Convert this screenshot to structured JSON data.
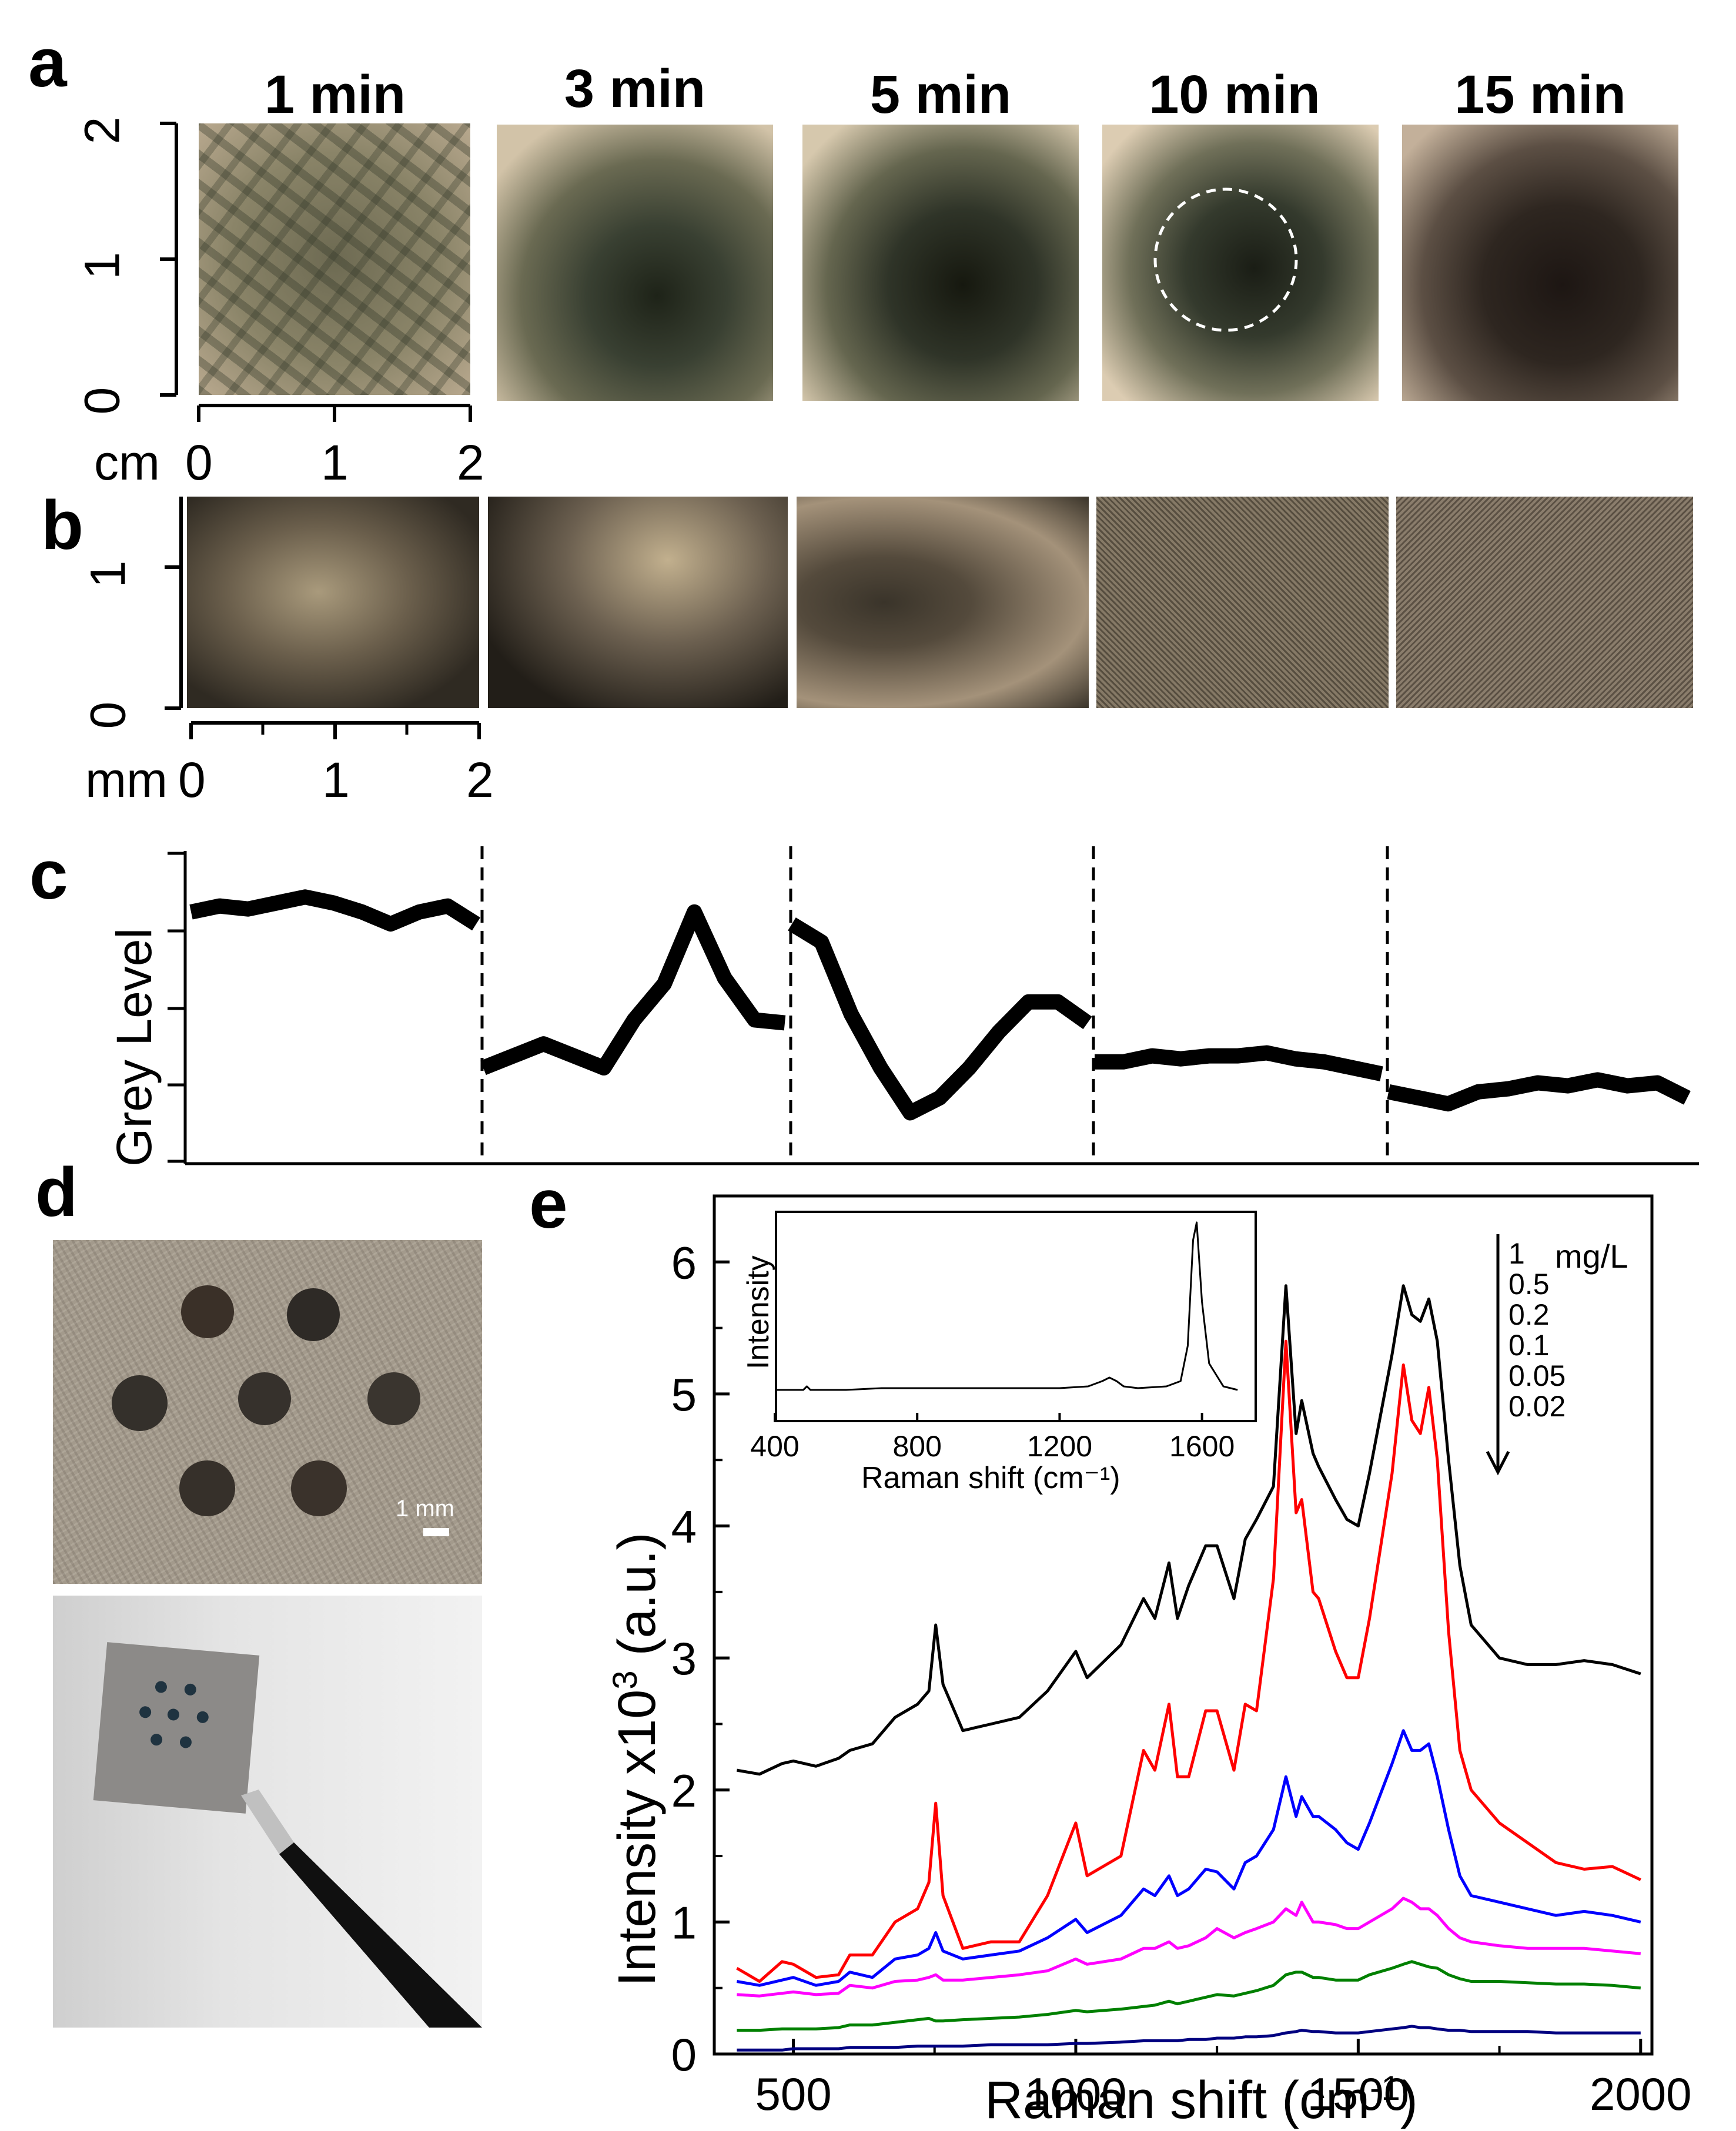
{
  "panel_a": {
    "letter": "a",
    "times": [
      "1 min",
      "3 min",
      "5 min",
      "10 min",
      "15 min"
    ],
    "y_ticks": [
      "0",
      "1",
      "2"
    ],
    "x_ticks": [
      "0",
      "1",
      "2"
    ],
    "unit": "cm"
  },
  "panel_b": {
    "letter": "b",
    "y_ticks": [
      "0",
      "1"
    ],
    "x_ticks": [
      "0",
      "1",
      "2"
    ],
    "unit": "mm"
  },
  "panel_c": {
    "letter": "c",
    "ylabel": "Grey Level"
  },
  "panel_d": {
    "letter": "d",
    "scale_bar": "1 mm"
  },
  "panel_e": {
    "letter": "e",
    "inset_ylabel": "Intensity",
    "inset_xlabel": "Raman shift (cm⁻¹)",
    "ylabel_main": "Intensity x10",
    "ylabel_sup": "3",
    "ylabel_unit": " (a.u.)",
    "xlabel_main": "Raman shift (cm",
    "xlabel_sup": "-1",
    "xlabel_end": ")",
    "legend_unit": "mg/L"
  },
  "chart_data": [
    {
      "type": "line",
      "id": "grey-level-profiles",
      "ylabel": "Grey Level",
      "segments": [
        "1 min",
        "3 min",
        "5 min",
        "10 min",
        "15 min"
      ],
      "x": [
        0,
        0.1,
        0.2,
        0.3,
        0.4,
        0.5,
        0.6,
        0.7,
        0.8,
        0.9,
        1.0
      ],
      "series": [
        {
          "values": [
            0.82,
            0.84,
            0.83,
            0.85,
            0.87,
            0.85,
            0.82,
            0.78,
            0.82,
            0.84,
            0.78
          ]
        },
        {
          "values": [
            0.3,
            0.34,
            0.38,
            0.34,
            0.3,
            0.46,
            0.58,
            0.82,
            0.6,
            0.46,
            0.45
          ]
        },
        {
          "values": [
            0.78,
            0.72,
            0.48,
            0.3,
            0.15,
            0.2,
            0.3,
            0.42,
            0.52,
            0.52,
            0.45
          ]
        },
        {
          "values": [
            0.32,
            0.32,
            0.34,
            0.33,
            0.34,
            0.34,
            0.35,
            0.33,
            0.32,
            0.3,
            0.28
          ]
        },
        {
          "values": [
            0.22,
            0.2,
            0.18,
            0.22,
            0.23,
            0.25,
            0.24,
            0.26,
            0.24,
            0.25,
            0.2
          ]
        }
      ]
    },
    {
      "type": "line",
      "id": "sers-spectra",
      "xlabel": "Raman shift (cm-1)",
      "ylabel": "Intensity x10^3 (a.u.)",
      "xlim": [
        360,
        2020
      ],
      "ylim": [
        0,
        6.5
      ],
      "x_ticks": [
        500,
        1000,
        1500,
        2000
      ],
      "y_ticks": [
        0,
        1,
        2,
        3,
        4,
        5,
        6
      ],
      "legend_title": "mg/L",
      "legend": [
        "1",
        "0.5",
        "0.2",
        "0.1",
        "0.05",
        "0.02"
      ],
      "x": [
        400,
        440,
        480,
        500,
        540,
        580,
        600,
        640,
        680,
        720,
        740,
        752,
        765,
        800,
        850,
        900,
        950,
        1000,
        1020,
        1080,
        1120,
        1140,
        1165,
        1180,
        1200,
        1230,
        1250,
        1280,
        1300,
        1320,
        1350,
        1372,
        1390,
        1400,
        1420,
        1430,
        1460,
        1480,
        1500,
        1520,
        1560,
        1580,
        1595,
        1610,
        1625,
        1640,
        1660,
        1680,
        1700,
        1750,
        1800,
        1850,
        1900,
        1950,
        2000
      ],
      "series": [
        {
          "name": "1",
          "color": "#000000",
          "values": [
            2.15,
            2.12,
            2.2,
            2.22,
            2.18,
            2.24,
            2.3,
            2.35,
            2.55,
            2.65,
            2.75,
            3.25,
            2.8,
            2.45,
            2.5,
            2.55,
            2.75,
            3.05,
            2.85,
            3.1,
            3.45,
            3.3,
            3.72,
            3.3,
            3.55,
            3.85,
            3.85,
            3.45,
            3.9,
            4.05,
            4.3,
            5.82,
            4.7,
            4.95,
            4.55,
            4.45,
            4.2,
            4.05,
            4.0,
            4.4,
            5.3,
            5.82,
            5.6,
            5.55,
            5.72,
            5.4,
            4.5,
            3.7,
            3.25,
            3.0,
            2.95,
            2.95,
            2.98,
            2.95,
            2.88
          ]
        },
        {
          "name": "0.5",
          "color": "#ff0000",
          "values": [
            0.65,
            0.55,
            0.7,
            0.68,
            0.58,
            0.6,
            0.75,
            0.75,
            1.0,
            1.1,
            1.3,
            1.9,
            1.2,
            0.8,
            0.85,
            0.85,
            1.2,
            1.75,
            1.35,
            1.5,
            2.3,
            2.15,
            2.65,
            2.1,
            2.1,
            2.6,
            2.6,
            2.15,
            2.65,
            2.6,
            3.6,
            5.4,
            4.1,
            4.2,
            3.5,
            3.45,
            3.05,
            2.85,
            2.85,
            3.3,
            4.4,
            5.22,
            4.8,
            4.7,
            5.05,
            4.5,
            3.2,
            2.3,
            2.0,
            1.75,
            1.6,
            1.45,
            1.4,
            1.42,
            1.32
          ]
        },
        {
          "name": "0.2",
          "color": "#0000ff",
          "values": [
            0.55,
            0.52,
            0.56,
            0.58,
            0.52,
            0.55,
            0.62,
            0.58,
            0.72,
            0.75,
            0.8,
            0.92,
            0.78,
            0.72,
            0.75,
            0.78,
            0.88,
            1.02,
            0.92,
            1.05,
            1.25,
            1.2,
            1.35,
            1.2,
            1.25,
            1.4,
            1.38,
            1.25,
            1.45,
            1.5,
            1.7,
            2.1,
            1.8,
            1.95,
            1.8,
            1.8,
            1.7,
            1.6,
            1.55,
            1.75,
            2.2,
            2.45,
            2.3,
            2.3,
            2.35,
            2.1,
            1.7,
            1.35,
            1.2,
            1.15,
            1.1,
            1.05,
            1.08,
            1.05,
            1.0
          ]
        },
        {
          "name": "0.1",
          "color": "#ff00ff",
          "values": [
            0.45,
            0.44,
            0.46,
            0.47,
            0.45,
            0.46,
            0.52,
            0.5,
            0.55,
            0.56,
            0.58,
            0.6,
            0.56,
            0.56,
            0.58,
            0.6,
            0.63,
            0.72,
            0.68,
            0.72,
            0.8,
            0.8,
            0.85,
            0.8,
            0.82,
            0.88,
            0.95,
            0.88,
            0.92,
            0.95,
            1.0,
            1.1,
            1.05,
            1.15,
            1.0,
            1.0,
            0.98,
            0.95,
            0.95,
            1.0,
            1.1,
            1.18,
            1.15,
            1.1,
            1.1,
            1.05,
            0.95,
            0.88,
            0.85,
            0.82,
            0.8,
            0.8,
            0.8,
            0.78,
            0.76
          ]
        },
        {
          "name": "0.05",
          "color": "#008000",
          "values": [
            0.18,
            0.18,
            0.19,
            0.19,
            0.19,
            0.2,
            0.22,
            0.22,
            0.24,
            0.26,
            0.27,
            0.25,
            0.25,
            0.26,
            0.27,
            0.28,
            0.3,
            0.33,
            0.32,
            0.34,
            0.36,
            0.37,
            0.4,
            0.38,
            0.4,
            0.43,
            0.45,
            0.44,
            0.46,
            0.48,
            0.52,
            0.6,
            0.62,
            0.62,
            0.58,
            0.58,
            0.56,
            0.56,
            0.56,
            0.6,
            0.65,
            0.68,
            0.7,
            0.68,
            0.66,
            0.65,
            0.6,
            0.57,
            0.55,
            0.55,
            0.54,
            0.53,
            0.53,
            0.52,
            0.5
          ]
        },
        {
          "name": "0.02",
          "color": "#000080",
          "values": [
            0.03,
            0.03,
            0.03,
            0.04,
            0.04,
            0.04,
            0.05,
            0.05,
            0.05,
            0.06,
            0.06,
            0.06,
            0.06,
            0.06,
            0.07,
            0.07,
            0.07,
            0.08,
            0.08,
            0.09,
            0.1,
            0.1,
            0.1,
            0.1,
            0.11,
            0.11,
            0.12,
            0.12,
            0.13,
            0.13,
            0.14,
            0.16,
            0.17,
            0.18,
            0.17,
            0.17,
            0.16,
            0.16,
            0.16,
            0.17,
            0.19,
            0.2,
            0.21,
            0.2,
            0.2,
            0.19,
            0.18,
            0.18,
            0.17,
            0.17,
            0.17,
            0.16,
            0.16,
            0.16,
            0.16
          ]
        }
      ]
    },
    {
      "type": "line",
      "id": "inset-spectrum",
      "xlabel": "Raman shift (cm-1)",
      "ylabel": "Intensity",
      "xlim": [
        400,
        1700
      ],
      "x_ticks": [
        400,
        800,
        1200,
        1600
      ],
      "ylim": [
        0,
        1
      ],
      "x": [
        400,
        480,
        490,
        500,
        600,
        700,
        800,
        900,
        1000,
        1100,
        1200,
        1280,
        1320,
        1340,
        1360,
        1380,
        1420,
        1500,
        1540,
        1560,
        1575,
        1585,
        1600,
        1620,
        1660,
        1700
      ],
      "series": [
        {
          "name": "",
          "color": "#000000",
          "values": [
            0.05,
            0.05,
            0.07,
            0.05,
            0.05,
            0.06,
            0.06,
            0.06,
            0.06,
            0.06,
            0.06,
            0.07,
            0.1,
            0.12,
            0.1,
            0.07,
            0.06,
            0.07,
            0.1,
            0.3,
            0.9,
            1.0,
            0.55,
            0.2,
            0.07,
            0.05
          ]
        }
      ]
    }
  ]
}
